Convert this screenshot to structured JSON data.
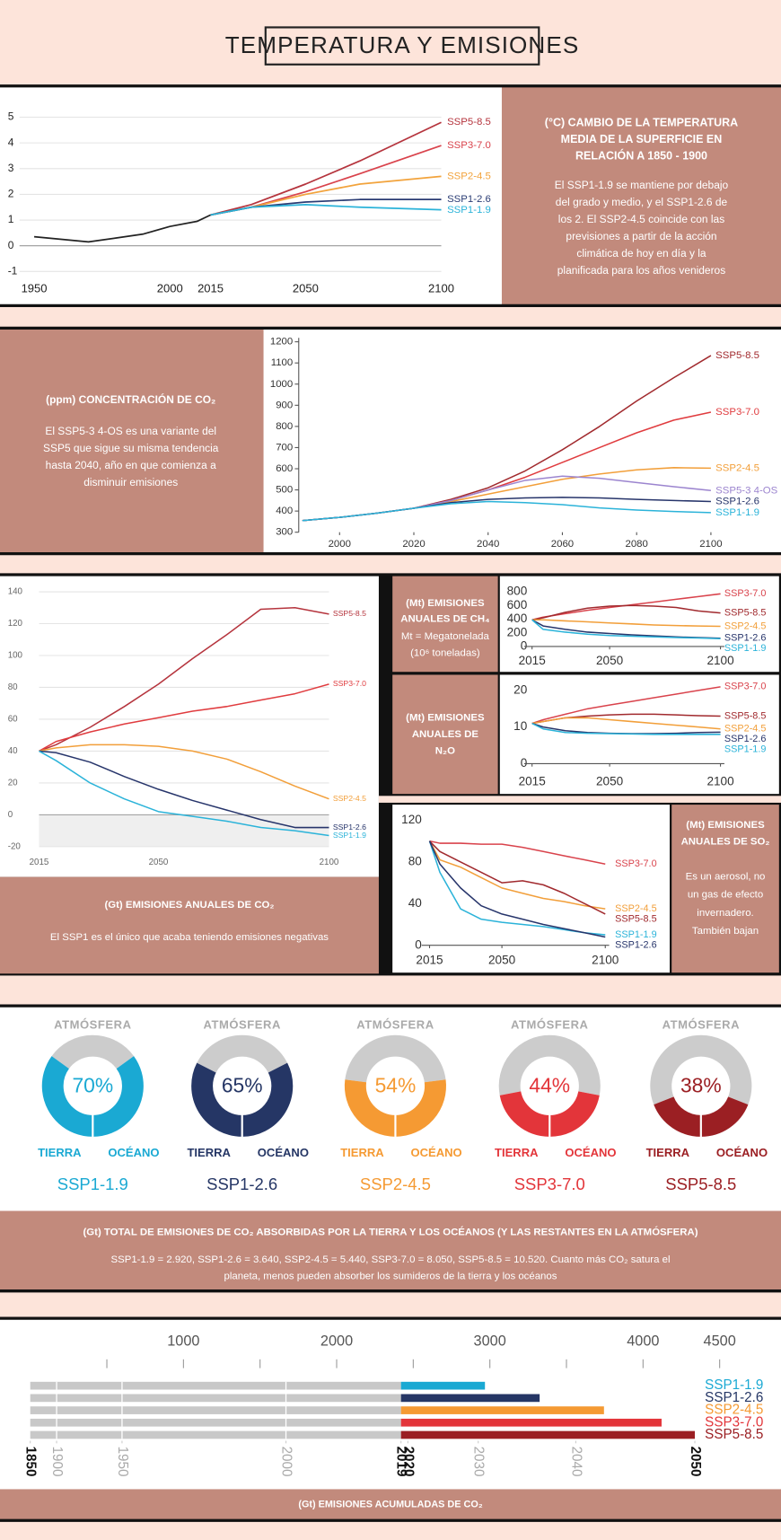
{
  "title": "TEMPERATURA Y EMISIONES",
  "chart_data": [
    {
      "type": "line",
      "title": [
        "(°C) CAMBIO DE LA TEMPERATURA",
        "MEDIA DE LA SUPERFICIE EN",
        "RELACIÓN A 1850 - 1900"
      ],
      "note": [
        "El SSP1-1.9 se mantiene por debajo",
        "del grado y medio, y el SSP1-2.6 de",
        "los 2. El SSP2-4.5 coincide con las",
        "previsiones a partir de la acción",
        "climática de hoy en día y la",
        "planificada para los años venideros"
      ],
      "x": [
        1950,
        1960,
        1970,
        1980,
        1990,
        2000,
        2010,
        2015,
        2030,
        2050,
        2070,
        2100
      ],
      "xlim": [
        1950,
        2100
      ],
      "xticks": [
        1950,
        2000,
        2015,
        2050,
        2100
      ],
      "ylim": [
        -1,
        5
      ],
      "yticks": [
        -1,
        0,
        1,
        2,
        3,
        4,
        5
      ],
      "grid": true,
      "series": [
        {
          "color": "#222222",
          "values": [
            0.35,
            0.25,
            0.15,
            0.3,
            0.45,
            0.75,
            0.95,
            1.2,
            null,
            null,
            null,
            null
          ]
        },
        {
          "name": "SSP5-8.5",
          "color": "#b5343d",
          "values": [
            null,
            null,
            null,
            null,
            null,
            null,
            null,
            1.2,
            1.6,
            2.4,
            3.3,
            4.8
          ]
        },
        {
          "name": "SSP3-7.0",
          "color": "#d9434c",
          "values": [
            null,
            null,
            null,
            null,
            null,
            null,
            null,
            1.2,
            1.5,
            2.1,
            2.8,
            3.9
          ]
        },
        {
          "name": "SSP2-4.5",
          "color": "#f2a33c",
          "values": [
            null,
            null,
            null,
            null,
            null,
            null,
            null,
            1.2,
            1.5,
            2.0,
            2.4,
            2.7
          ]
        },
        {
          "name": "SSP1-2.6",
          "color": "#2a3c74",
          "values": [
            null,
            null,
            null,
            null,
            null,
            null,
            null,
            1.2,
            1.5,
            1.7,
            1.8,
            1.8
          ]
        },
        {
          "name": "SSP1-1.9",
          "color": "#2bb3d9",
          "values": [
            null,
            null,
            null,
            null,
            null,
            null,
            null,
            1.2,
            1.5,
            1.6,
            1.5,
            1.4
          ]
        }
      ]
    },
    {
      "type": "line",
      "title": [
        "(ppm) CONCENTRACIÓN DE CO₂"
      ],
      "note": [
        "El SSP5-3 4-OS es una variante del",
        "SSP5 que sigue su misma tendencia",
        "hasta 2040, año en que comienza a",
        "disminuir emisiones"
      ],
      "x": [
        1990,
        2000,
        2010,
        2020,
        2030,
        2040,
        2050,
        2060,
        2070,
        2080,
        2090,
        2100
      ],
      "xlim": [
        1989,
        2101
      ],
      "xticks": [
        2000,
        2020,
        2040,
        2060,
        2080,
        2100
      ],
      "ylim": [
        300,
        1200
      ],
      "yticks": [
        300,
        400,
        500,
        600,
        700,
        800,
        900,
        1000,
        1100,
        1200
      ],
      "grid": false,
      "series": [
        {
          "name": "SSP5-8.5",
          "color": "#a12a2e",
          "values": [
            355,
            370,
            390,
            413,
            455,
            510,
            590,
            690,
            800,
            920,
            1030,
            1135
          ]
        },
        {
          "name": "SSP3-7.0",
          "color": "#e03c3f",
          "values": [
            355,
            370,
            390,
            413,
            450,
            500,
            560,
            630,
            700,
            770,
            830,
            867
          ]
        },
        {
          "name": "SSP2-4.5",
          "color": "#f29f3a",
          "values": [
            355,
            370,
            390,
            413,
            445,
            480,
            515,
            550,
            575,
            595,
            605,
            603
          ]
        },
        {
          "name": "SSP5-3 4-OS",
          "color": "#9c85cf",
          "values": [
            355,
            370,
            390,
            413,
            450,
            500,
            545,
            565,
            555,
            535,
            515,
            497
          ]
        },
        {
          "name": "SSP1-2.6",
          "color": "#27356b",
          "values": [
            355,
            370,
            390,
            413,
            440,
            455,
            462,
            465,
            462,
            455,
            450,
            445
          ]
        },
        {
          "name": "SSP1-1.9",
          "color": "#2bb3d9",
          "values": [
            355,
            370,
            390,
            413,
            435,
            445,
            440,
            430,
            415,
            405,
            398,
            393
          ]
        }
      ]
    },
    {
      "type": "line",
      "title": [
        "(Gt) EMISIONES ANUALES DE CO₂"
      ],
      "note": [
        "El SSP1 es el único que acaba teniendo emisiones negativas"
      ],
      "x": [
        2015,
        2020,
        2030,
        2040,
        2050,
        2060,
        2070,
        2080,
        2090,
        2100
      ],
      "xlim": [
        2015,
        2100
      ],
      "xticks": [
        2015,
        2050,
        2100
      ],
      "ylim": [
        -20,
        140
      ],
      "yticks": [
        -20,
        0,
        20,
        40,
        60,
        80,
        100,
        120,
        140
      ],
      "grid": true,
      "shaded_negative": true,
      "series": [
        {
          "name": "SSP5-8.5",
          "color": "#b5343d",
          "values": [
            40,
            44,
            55,
            68,
            82,
            98,
            113,
            129,
            130,
            126
          ]
        },
        {
          "name": "SSP3-7.0",
          "color": "#e03c3f",
          "values": [
            40,
            46,
            52,
            57,
            61,
            65,
            68,
            72,
            76,
            82
          ]
        },
        {
          "name": "SSP2-4.5",
          "color": "#f29f3a",
          "values": [
            40,
            42,
            44,
            44,
            43,
            40,
            35,
            27,
            18,
            10
          ]
        },
        {
          "name": "SSP1-2.6",
          "color": "#27356b",
          "values": [
            40,
            39,
            33,
            24,
            16,
            9,
            3,
            -3,
            -8,
            -8
          ]
        },
        {
          "name": "SSP1-1.9",
          "color": "#2bb3d9",
          "values": [
            40,
            34,
            20,
            10,
            2,
            -1,
            -4,
            -8,
            -10,
            -13
          ]
        }
      ]
    },
    {
      "type": "line",
      "title": [
        "(Mt) EMISIONES",
        "ANUALES DE CH₄"
      ],
      "note": [
        "Mt = Megatonelada",
        "(10⁶ toneladas)"
      ],
      "x": [
        2015,
        2020,
        2030,
        2040,
        2050,
        2060,
        2070,
        2080,
        2090,
        2100
      ],
      "xlim": [
        2015,
        2100
      ],
      "xticks": [
        2015,
        2050,
        2100
      ],
      "ylim": [
        0,
        800
      ],
      "yticks": [
        0,
        200,
        400,
        600,
        800
      ],
      "grid": false,
      "series": [
        {
          "name": "SSP3-7.0",
          "color": "#d9434c",
          "values": [
            390,
            430,
            480,
            530,
            570,
            610,
            650,
            690,
            730,
            770
          ]
        },
        {
          "name": "SSP5-8.5",
          "color": "#a12a2e",
          "values": [
            390,
            420,
            500,
            560,
            590,
            600,
            590,
            570,
            520,
            490
          ]
        },
        {
          "name": "SSP2-4.5",
          "color": "#f29f3a",
          "values": [
            390,
            390,
            375,
            360,
            345,
            330,
            315,
            305,
            300,
            295
          ]
        },
        {
          "name": "SSP1-2.6",
          "color": "#27356b",
          "values": [
            390,
            300,
            250,
            210,
            190,
            170,
            155,
            140,
            130,
            120
          ]
        },
        {
          "name": "SSP1-1.9",
          "color": "#2bb3d9",
          "values": [
            390,
            250,
            210,
            180,
            160,
            150,
            140,
            130,
            125,
            115
          ]
        }
      ]
    },
    {
      "type": "line",
      "title": [
        "(Mt) EMISIONES",
        "ANUALES DE",
        "N₂O"
      ],
      "x": [
        2015,
        2020,
        2030,
        2040,
        2050,
        2060,
        2070,
        2080,
        2090,
        2100
      ],
      "xlim": [
        2015,
        2100
      ],
      "xticks": [
        2015,
        2050,
        2100
      ],
      "ylim": [
        0,
        20
      ],
      "yticks": [
        0,
        10,
        20
      ],
      "grid": false,
      "series": [
        {
          "name": "SSP3-7.0",
          "color": "#d9434c",
          "values": [
            11,
            12,
            13.5,
            15,
            16,
            17,
            18,
            19,
            20,
            21
          ]
        },
        {
          "name": "SSP5-8.5",
          "color": "#a12a2e",
          "values": [
            11,
            11.5,
            12.5,
            13,
            13.3,
            13.5,
            13.5,
            13.3,
            13.1,
            13
          ]
        },
        {
          "name": "SSP2-4.5",
          "color": "#f29f3a",
          "values": [
            11,
            11.5,
            12.5,
            12.5,
            12,
            11.5,
            11,
            10.5,
            10,
            9.5
          ]
        },
        {
          "name": "SSP1-2.6",
          "color": "#27356b",
          "values": [
            11,
            10,
            9,
            8.5,
            8.3,
            8.2,
            8.2,
            8.3,
            8.5,
            8.6
          ]
        },
        {
          "name": "SSP1-1.9",
          "color": "#2bb3d9",
          "values": [
            11,
            9.5,
            8.5,
            8.3,
            8.2,
            8.1,
            8,
            8,
            8,
            8
          ]
        }
      ]
    },
    {
      "type": "line",
      "title": [
        "(Mt) EMISIONES",
        "ANUALES DE SO₂"
      ],
      "note": [
        "Es un aerosol, no",
        "un gas de efecto",
        "invernadero.",
        "También bajan"
      ],
      "x": [
        2015,
        2020,
        2030,
        2040,
        2050,
        2060,
        2070,
        2080,
        2090,
        2100
      ],
      "xlim": [
        2015,
        2100
      ],
      "xticks": [
        2015,
        2050,
        2100
      ],
      "ylim": [
        0,
        120
      ],
      "yticks": [
        0,
        40,
        80,
        120
      ],
      "grid": false,
      "series": [
        {
          "name": "SSP3-7.0",
          "color": "#d9434c",
          "values": [
            100,
            98,
            98,
            97,
            97,
            94,
            90,
            86,
            82,
            78
          ]
        },
        {
          "name": "SSP2-4.5",
          "color": "#f29f3a",
          "values": [
            100,
            82,
            75,
            65,
            55,
            50,
            45,
            42,
            38,
            35
          ]
        },
        {
          "name": "SSP5-8.5",
          "color": "#a12a2e",
          "values": [
            100,
            90,
            80,
            70,
            60,
            62,
            58,
            50,
            40,
            30
          ]
        },
        {
          "name": "SSP1-1.9",
          "color": "#2bb3d9",
          "values": [
            100,
            70,
            35,
            25,
            22,
            20,
            18,
            15,
            12,
            10
          ]
        },
        {
          "name": "SSP1-2.6",
          "color": "#27356b",
          "values": [
            100,
            78,
            55,
            38,
            30,
            25,
            20,
            16,
            12,
            8
          ]
        }
      ]
    },
    {
      "type": "donut",
      "title": [
        "(Gt) TOTAL DE EMISIONES DE CO₂ ABSORBIDAS POR LA TIERRA Y LOS OCÉANOS (Y LAS RESTANTES EN LA ATMÓSFERA)"
      ],
      "note": [
        "SSP1-1.9 = 2.920, SSP1-2.6 = 3.640, SSP2-4.5 = 5.440, SSP3-7.0 = 8.050, SSP5-8.5 = 10.520. Cuanto más CO₂ satura el",
        "planeta, menos pueden absorber los sumideros de la tierra y los océanos"
      ],
      "labels": {
        "top": "ATMÓSFERA",
        "left": "TIERRA",
        "right": "OCÉANO"
      },
      "remainder_color": "#cccccc",
      "categories": [
        "SSP1-1.9",
        "SSP1-2.6",
        "SSP2-4.5",
        "SSP3-7.0",
        "SSP5-8.5"
      ],
      "values": [
        70,
        65,
        54,
        44,
        38
      ],
      "value_labels": [
        "70%",
        "65%",
        "54%",
        "44%",
        "38%"
      ],
      "colors": [
        "#1aa9d3",
        "#253665",
        "#f59a33",
        "#e3353a",
        "#9b1f23"
      ]
    },
    {
      "type": "bar",
      "orientation": "horizontal",
      "title": [
        "(Gt) EMISIONES ACUMULADAS DE CO₂"
      ],
      "xlim": [
        0,
        4550
      ],
      "xticks": [
        1000,
        2000,
        3000,
        4000,
        4500
      ],
      "xminor": [
        500,
        1500,
        2500,
        3500
      ],
      "year_ticks": [
        {
          "value": 0,
          "label": "1850",
          "bold": true
        },
        {
          "value": 172,
          "label": "1900"
        },
        {
          "value": 599,
          "label": "1950"
        },
        {
          "value": 1669,
          "label": "2000"
        },
        {
          "value": 2420,
          "label": "2019",
          "bold": true
        },
        {
          "value": 2465,
          "label": "2020",
          "bold": true
        },
        {
          "value": 2924,
          "label": "2030"
        },
        {
          "value": 3561,
          "label": "2040"
        },
        {
          "value": 4338,
          "label": "2050",
          "bold": true
        }
      ],
      "categories": [
        "SSP1-1.9",
        "SSP1-2.6",
        "SSP2-4.5",
        "SSP3-7.0",
        "SSP5-8.5"
      ],
      "series": [
        {
          "color": "#c8c8c8",
          "values": [
            2420,
            2420,
            2420,
            2420,
            2420
          ]
        },
        {
          "colors": [
            "#1aa9d3",
            "#253665",
            "#f59a33",
            "#e3353a",
            "#9b1f23"
          ],
          "values": [
            548,
            905,
            1325,
            1701,
            1918
          ]
        }
      ]
    }
  ]
}
